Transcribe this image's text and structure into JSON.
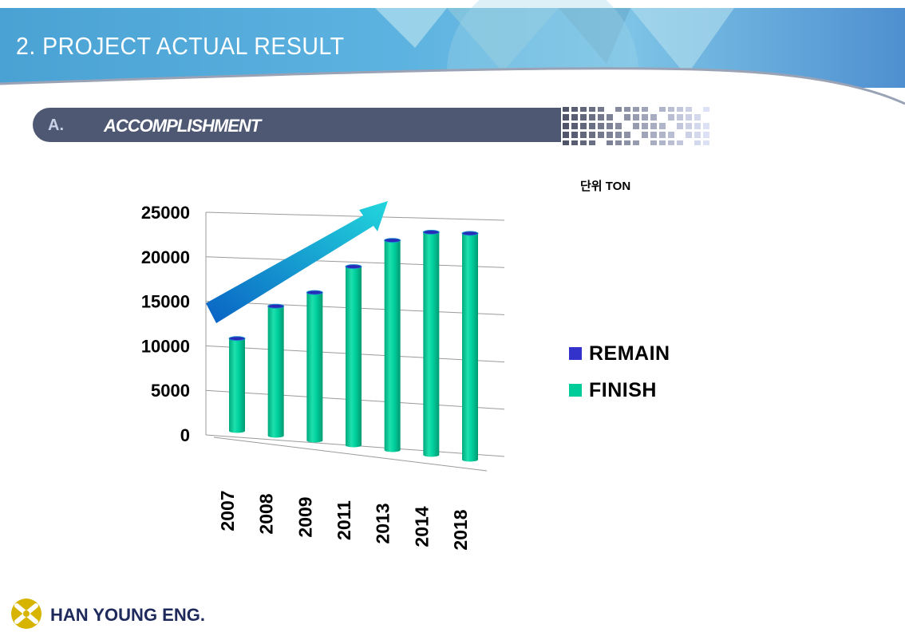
{
  "header": {
    "title": "2.  PROJECT ACTUAL RESULT"
  },
  "section": {
    "letter": "A.",
    "title": "ACCOMPLISHMENT"
  },
  "unit_label": "단위 TON",
  "footer": {
    "company": "HAN YOUNG ENG."
  },
  "colors": {
    "finish": "#00cc99",
    "remain": "#3333cc",
    "arrow": "#1f9fd6",
    "section_bar": "#4e5872"
  },
  "chart_data": {
    "type": "bar",
    "title": "",
    "xlabel": "",
    "ylabel": "",
    "unit": "TON",
    "categories": [
      "2007",
      "2008",
      "2009",
      "2011",
      "2013",
      "2014",
      "2018"
    ],
    "series": [
      {
        "name": "FINISH",
        "values": [
          11000,
          14800,
          16500,
          19500,
          22500,
          23500,
          23500
        ]
      },
      {
        "name": "REMAIN",
        "values": [
          0,
          0,
          0,
          0,
          0,
          0,
          0
        ]
      }
    ],
    "yticks": [
      "25000",
      "20000",
      "15000",
      "10000",
      "5000",
      "0"
    ],
    "ylim": [
      0,
      25000
    ],
    "legend": [
      {
        "name": "REMAIN"
      },
      {
        "name": "FINISH"
      }
    ],
    "legend_position": "right",
    "grid": true,
    "annotation": "trend-arrow"
  }
}
